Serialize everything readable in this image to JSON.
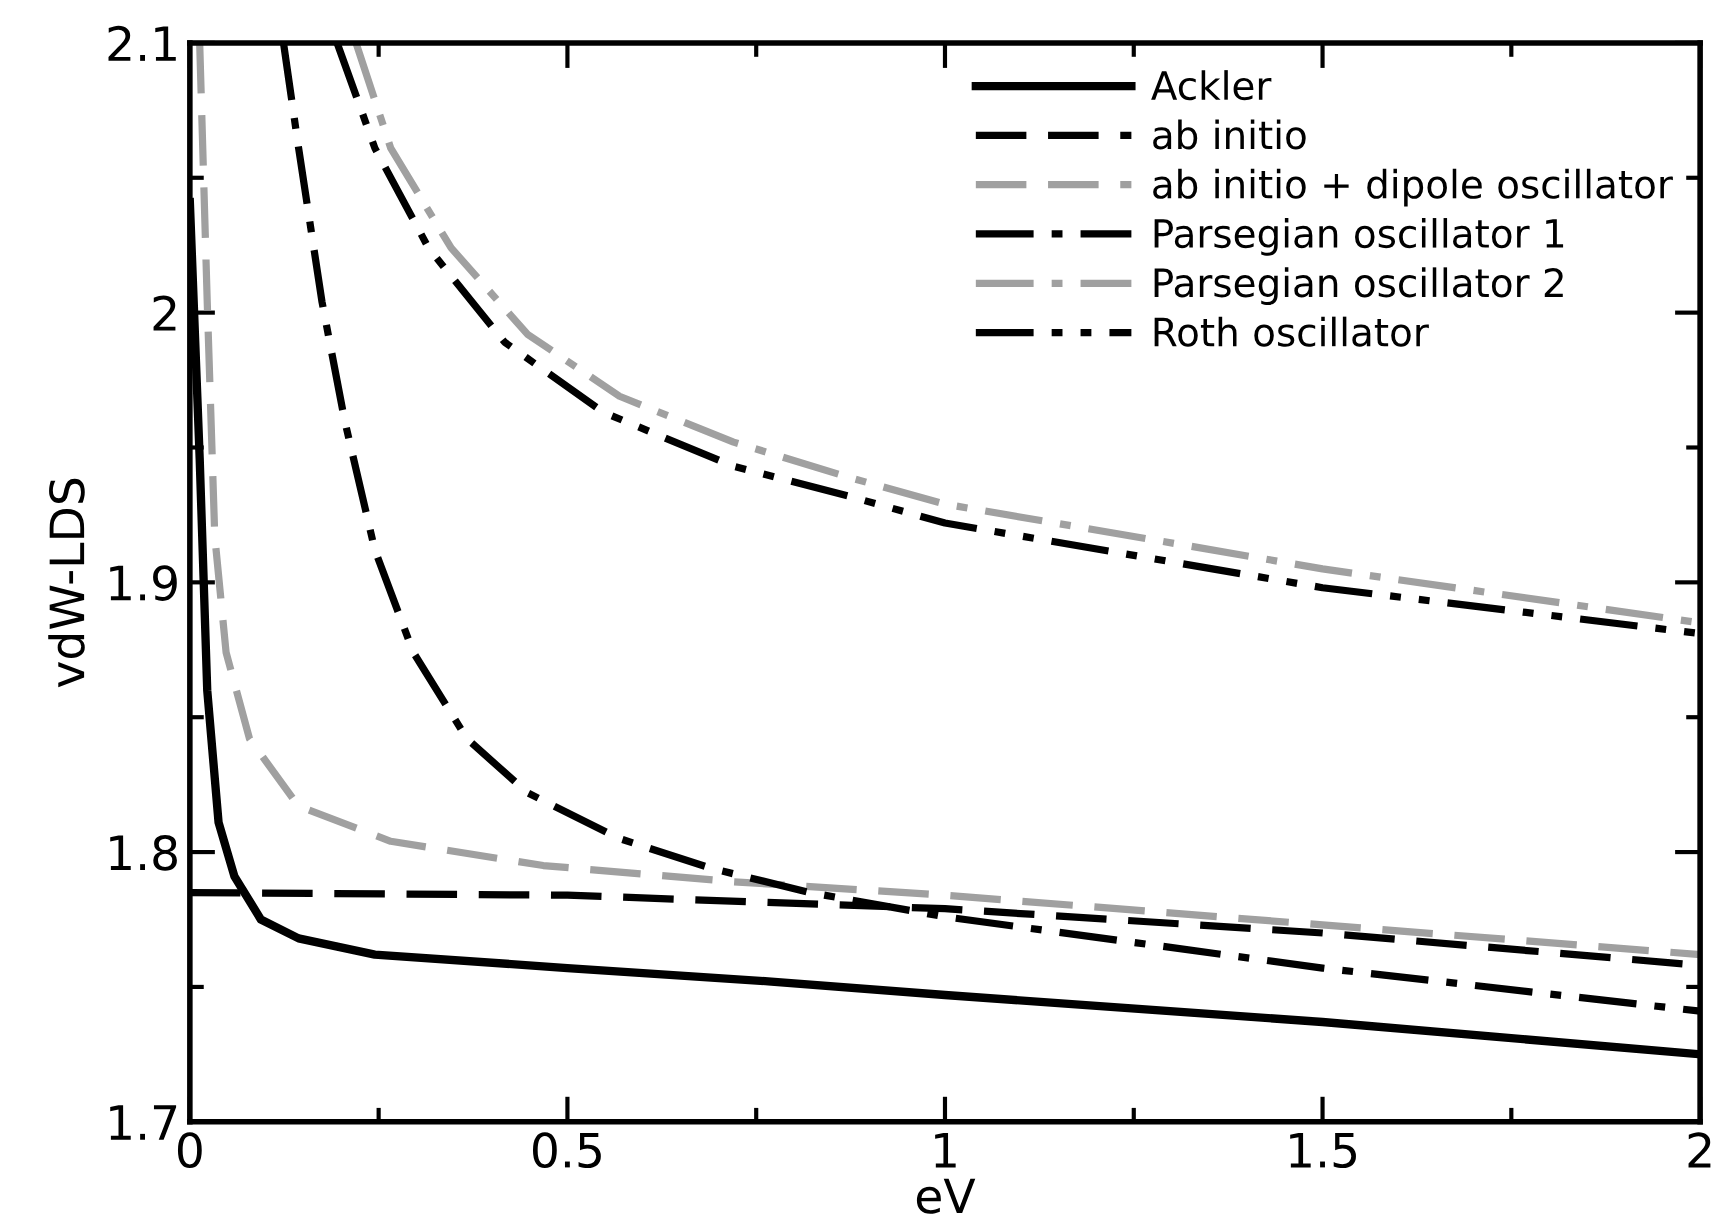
{
  "chart_data": {
    "type": "line",
    "xlabel": "eV",
    "ylabel": "vdW-LDS",
    "xlim": [
      0,
      2
    ],
    "ylim": [
      1.7,
      2.1
    ],
    "xticks": [
      0,
      {
        "value": 0.25,
        "label": null
      },
      0.5,
      {
        "value": 0.75,
        "label": null
      },
      1,
      {
        "value": 1.25,
        "label": null
      },
      1.5,
      {
        "value": 1.75,
        "label": null
      },
      2
    ],
    "yticks": [
      1.7,
      {
        "value": 1.75,
        "label": null
      },
      1.8,
      {
        "value": 1.85,
        "label": null
      },
      1.9,
      {
        "value": 1.95,
        "label": null
      },
      2,
      {
        "value": 2.05,
        "label": null
      },
      2.1
    ],
    "grid": false,
    "legend": "top right",
    "marker": "none",
    "series": [
      {
        "name": "Ackler",
        "color": "#000000",
        "line_style": "solid",
        "x": [
          0,
          0.013,
          0.023,
          0.038,
          0.059,
          0.094,
          0.144,
          0.245,
          0.5,
          0.77,
          1,
          1.5,
          2
        ],
        "values": [
          2.041,
          1.946,
          1.86,
          1.811,
          1.791,
          1.775,
          1.768,
          1.762,
          1.757,
          1.752,
          1.747,
          1.737,
          1.725
        ]
      },
      {
        "name": "ab initio",
        "color": "#000000",
        "line_style": "dashed",
        "x": [
          0,
          0.5,
          1,
          1.5,
          2
        ],
        "values": [
          1.785,
          1.784,
          1.779,
          1.77,
          1.758
        ]
      },
      {
        "name": "ab initio + dipole oscillator",
        "color": "#a0a0a0",
        "line_style": "dashed",
        "x": [
          0.013,
          0.023,
          0.033,
          0.048,
          0.079,
          0.144,
          0.266,
          0.468,
          0.72,
          1,
          1.5,
          2
        ],
        "values": [
          2.1,
          2.004,
          1.917,
          1.874,
          1.842,
          1.817,
          1.804,
          1.795,
          1.789,
          1.784,
          1.773,
          1.762
        ]
      },
      {
        "name": "Parsegian oscillator 1",
        "color": "#000000",
        "line_style": "dashdot",
        "x": [
          0.124,
          0.144,
          0.175,
          0.205,
          0.245,
          0.296,
          0.367,
          0.447,
          0.569,
          0.69,
          0.821,
          1,
          1.5,
          2
        ],
        "values": [
          2.1,
          2.061,
          2.004,
          1.96,
          1.912,
          1.874,
          1.842,
          1.822,
          1.805,
          1.794,
          1.785,
          1.776,
          1.757,
          1.741
        ]
      },
      {
        "name": "Parsegian oscillator 2",
        "color": "#a0a0a0",
        "line_style": "dashdot",
        "x": [
          0.22,
          0.266,
          0.346,
          0.447,
          0.569,
          0.72,
          0.872,
          1,
          1.5,
          2
        ],
        "values": [
          2.1,
          2.061,
          2.024,
          1.992,
          1.969,
          1.952,
          1.939,
          1.929,
          1.905,
          1.885
        ]
      },
      {
        "name": "Roth oscillator",
        "color": "#000000",
        "line_style": "dashdotdot",
        "x": [
          0.195,
          0.245,
          0.316,
          0.417,
          0.548,
          0.72,
          0.872,
          1,
          1.5,
          2
        ],
        "values": [
          2.1,
          2.061,
          2.024,
          1.989,
          1.963,
          1.943,
          1.932,
          1.922,
          1.898,
          1.881
        ]
      }
    ]
  }
}
